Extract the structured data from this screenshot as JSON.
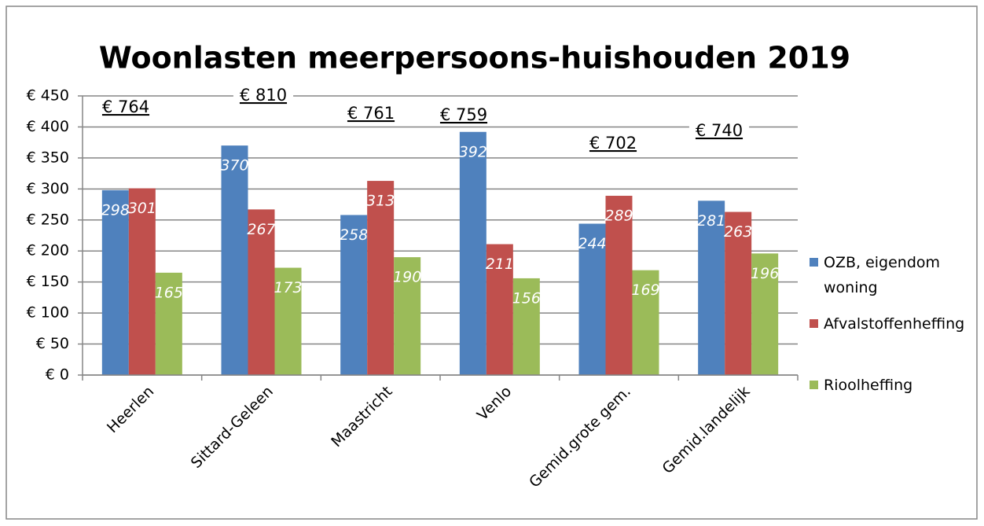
{
  "chart_data": {
    "type": "bar",
    "title": "Woonlasten meerpersoons-huishouden 2019",
    "categories": [
      "Heerlen",
      "Sittard-Geleen",
      "Maastricht",
      "Venlo",
      "Gemid.grote gem.",
      "Gemid.landelijk"
    ],
    "series": [
      {
        "name": "OZB, eigendom woning",
        "color": "#4f81bd",
        "values": [
          298,
          370,
          258,
          392,
          244,
          281
        ]
      },
      {
        "name": "Afvalstoffenheffing",
        "color": "#c0504d",
        "values": [
          301,
          267,
          313,
          211,
          289,
          263
        ]
      },
      {
        "name": "Rioolheffing",
        "color": "#9bbb59",
        "values": [
          165,
          173,
          190,
          156,
          169,
          196
        ]
      }
    ],
    "annotations": [
      "€ 764",
      "€ 810",
      "€ 761",
      "€ 759",
      "€ 702",
      "€ 740"
    ],
    "ylim": [
      0,
      450
    ],
    "yticks": [
      {
        "value": 0,
        "label": "€ 0"
      },
      {
        "value": 50,
        "label": "€ 50"
      },
      {
        "value": 100,
        "label": "€ 100"
      },
      {
        "value": 150,
        "label": "€ 150"
      },
      {
        "value": 200,
        "label": "€ 200"
      },
      {
        "value": 250,
        "label": "€ 250"
      },
      {
        "value": 300,
        "label": "€ 300"
      },
      {
        "value": 350,
        "label": "€ 350"
      },
      {
        "value": 400,
        "label": "€ 400"
      },
      {
        "value": 450,
        "label": "€ 450"
      }
    ],
    "grid": true,
    "legend": "right"
  }
}
